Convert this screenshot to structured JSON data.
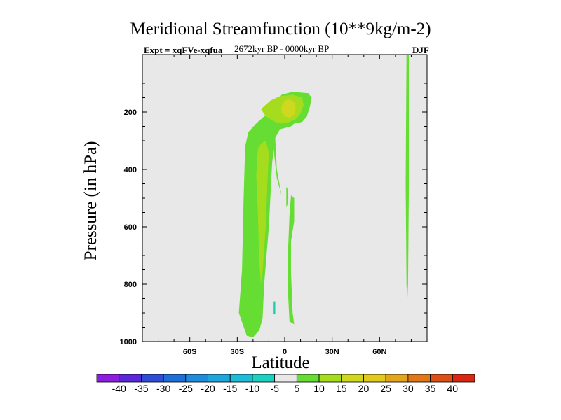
{
  "chart_data": {
    "type": "heatmap",
    "title": "Meridional Streamfunction (10**9kg/m-2)",
    "subtitle_left": "Expt = xqFVe-xqfua",
    "subtitle_center": "2672kyr BP - 0000kyr BP",
    "subtitle_right": "DJF",
    "xlabel": "Latitude",
    "ylabel": "Pressure (in hPa)",
    "xlim": [
      -90,
      90
    ],
    "ylim": [
      1000,
      0
    ],
    "x_ticks": [
      {
        "value": -60,
        "label": "60S"
      },
      {
        "value": -30,
        "label": "30S"
      },
      {
        "value": 0,
        "label": "0"
      },
      {
        "value": 30,
        "label": "30N"
      },
      {
        "value": 60,
        "label": "60N"
      }
    ],
    "y_ticks": [
      {
        "value": 200,
        "label": "200"
      },
      {
        "value": 400,
        "label": "400"
      },
      {
        "value": 600,
        "label": "600"
      },
      {
        "value": 800,
        "label": "800"
      },
      {
        "value": 1000,
        "label": "1000"
      }
    ],
    "background_color": "#e8e8e8",
    "contours": [
      {
        "level": "5 to 10",
        "color": "#66dd33",
        "points": [
          [
            -24,
            980
          ],
          [
            -29,
            900
          ],
          [
            -27,
            750
          ],
          [
            -26,
            500
          ],
          [
            -25,
            320
          ],
          [
            -23,
            270
          ],
          [
            -18,
            240
          ],
          [
            -12,
            210
          ],
          [
            -6,
            170
          ],
          [
            -2,
            140
          ],
          [
            5,
            130
          ],
          [
            15,
            135
          ],
          [
            17,
            150
          ],
          [
            16,
            180
          ],
          [
            14,
            215
          ],
          [
            11,
            235
          ],
          [
            6,
            240
          ],
          [
            4,
            250
          ],
          [
            -3,
            260
          ],
          [
            -6,
            290
          ],
          [
            -5,
            400
          ],
          [
            -3,
            460
          ],
          [
            -2,
            490
          ],
          [
            -5,
            430
          ],
          [
            -7,
            330
          ],
          [
            -8,
            380
          ],
          [
            -10,
            600
          ],
          [
            -13,
            800
          ],
          [
            -14,
            920
          ],
          [
            -16,
            960
          ],
          [
            -20,
            985
          ]
        ]
      },
      {
        "level": "5 to 10",
        "color": "#66dd33",
        "points": [
          [
            4,
            490
          ],
          [
            6,
            500
          ],
          [
            6,
            580
          ],
          [
            4,
            650
          ],
          [
            4,
            760
          ],
          [
            5,
            900
          ],
          [
            6,
            940
          ],
          [
            3,
            930
          ],
          [
            2,
            820
          ],
          [
            2,
            700
          ],
          [
            3,
            560
          ]
        ]
      },
      {
        "level": "5 to 10",
        "color": "#66dd33",
        "points": [
          [
            1,
            460
          ],
          [
            2,
            470
          ],
          [
            2,
            520
          ],
          [
            1,
            530
          ]
        ]
      },
      {
        "level": "5 to 10",
        "color": "#66dd33",
        "points": [
          [
            77,
            -5
          ],
          [
            78.5,
            -5
          ],
          [
            78.5,
            450
          ],
          [
            78,
            800
          ],
          [
            77.5,
            860
          ],
          [
            77,
            800
          ],
          [
            76.5,
            450
          ]
        ]
      },
      {
        "level": "10 to 15",
        "color": "#a5dc1e",
        "points": [
          [
            -15,
            190
          ],
          [
            -9,
            160
          ],
          [
            -3,
            145
          ],
          [
            5,
            140
          ],
          [
            11,
            150
          ],
          [
            12,
            175
          ],
          [
            10,
            205
          ],
          [
            7,
            225
          ],
          [
            3,
            235
          ],
          [
            -2,
            240
          ],
          [
            -6,
            235
          ],
          [
            -12,
            215
          ]
        ]
      },
      {
        "level": "10 to 15",
        "color": "#a5dc1e",
        "points": [
          [
            -17,
            330
          ],
          [
            -15,
            310
          ],
          [
            -12,
            300
          ],
          [
            -10,
            340
          ],
          [
            -11,
            450
          ],
          [
            -12,
            600
          ],
          [
            -14,
            760
          ],
          [
            -15,
            800
          ],
          [
            -16,
            730
          ],
          [
            -17,
            550
          ],
          [
            -18,
            420
          ]
        ]
      },
      {
        "level": "15 to 20",
        "color": "#cfd81e",
        "points": [
          [
            -2,
            180
          ],
          [
            0,
            160
          ],
          [
            3,
            155
          ],
          [
            6,
            165
          ],
          [
            7,
            190
          ],
          [
            6,
            210
          ],
          [
            3,
            220
          ],
          [
            0,
            215
          ],
          [
            -2,
            200
          ]
        ]
      },
      {
        "level": "-5 to -10",
        "color": "#1ecdb0",
        "points": [
          [
            -7,
            860
          ],
          [
            -6,
            860
          ],
          [
            -6,
            905
          ],
          [
            -7,
            905
          ]
        ]
      }
    ]
  },
  "colorbar": {
    "labels": [
      "-40",
      "-35",
      "-30",
      "-25",
      "-20",
      "-15",
      "-10",
      "-5",
      "5",
      "10",
      "15",
      "20",
      "25",
      "30",
      "35",
      "40"
    ],
    "colors": [
      "#8c1ee0",
      "#5a28d8",
      "#2d4ed4",
      "#1e6ed8",
      "#1e8cdc",
      "#1ea5dc",
      "#1ebcd8",
      "#1ed0c0",
      "#e8e8e8",
      "#66dd33",
      "#a5dc1e",
      "#cfd81e",
      "#e3c81e",
      "#e3a51e",
      "#e07818",
      "#dc5018",
      "#d82814"
    ]
  }
}
